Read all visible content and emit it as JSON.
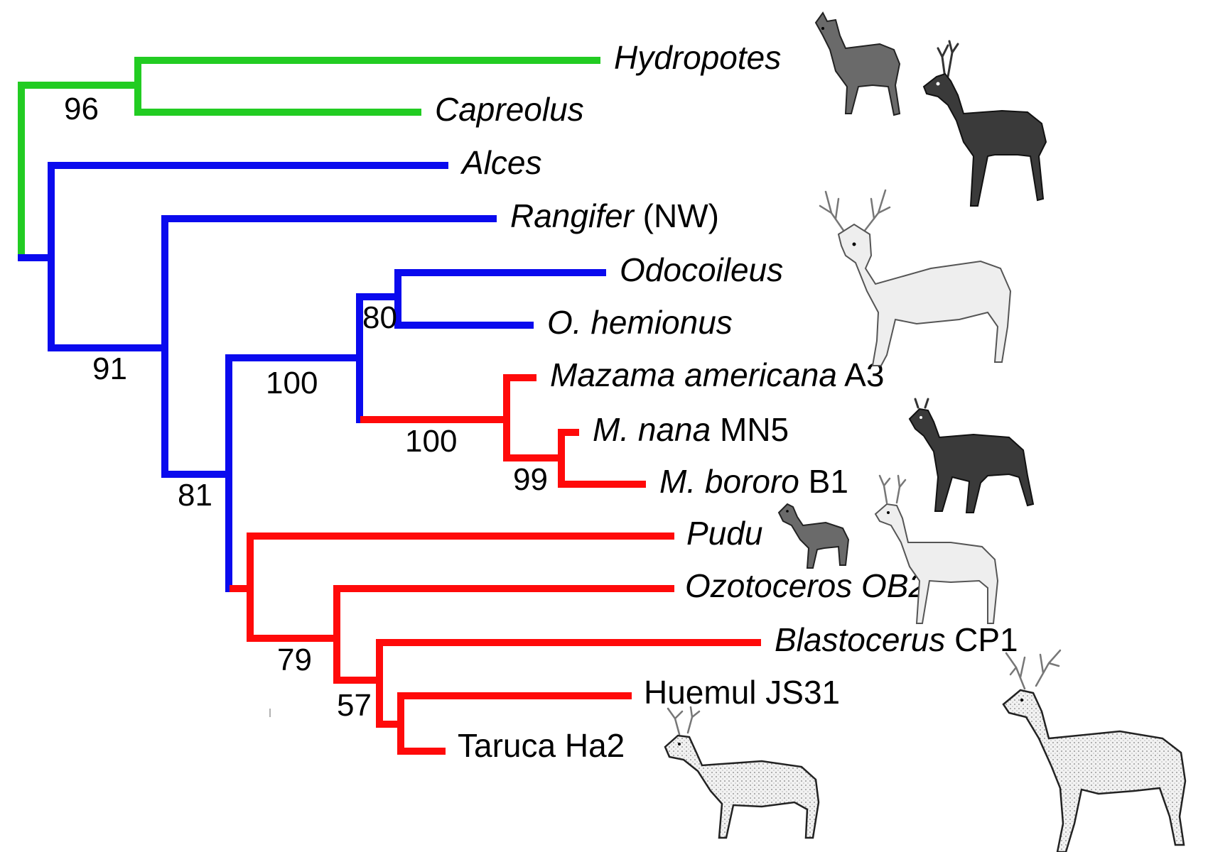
{
  "tree": {
    "taxa": [
      {
        "id": "hydropotes",
        "name": "Hydropotes",
        "suffix": ""
      },
      {
        "id": "capreolus",
        "name": "Capreolus",
        "suffix": ""
      },
      {
        "id": "alces",
        "name": "Alces",
        "suffix": ""
      },
      {
        "id": "rangifer",
        "name": "Rangifer",
        "suffix": " (NW)"
      },
      {
        "id": "odocoileus",
        "name": "Odocoileus",
        "suffix": ""
      },
      {
        "id": "o-hemionus",
        "name": "O. hemionus",
        "suffix": ""
      },
      {
        "id": "mazama-americana",
        "name": "Mazama americana",
        "suffix": " A3"
      },
      {
        "id": "m-nana",
        "name": "M. nana",
        "suffix": " MN5"
      },
      {
        "id": "m-bororo",
        "name": "M. bororo",
        "suffix": " B1"
      },
      {
        "id": "pudu",
        "name": "Pudu",
        "suffix": ""
      },
      {
        "id": "ozotoceros",
        "name": "Ozotoceros OB2",
        "suffix": ""
      },
      {
        "id": "blastocerus",
        "name": "Blastocerus",
        "suffix": " CP1"
      },
      {
        "id": "huemul",
        "name": "",
        "suffix": "Huemul JS31"
      },
      {
        "id": "taruca",
        "name": "",
        "suffix": "Taruca Ha2"
      }
    ],
    "support_values": [
      "96",
      "91",
      "80",
      "100",
      "100",
      "99",
      "81",
      "79",
      "57"
    ],
    "colors": {
      "old_world": "#22cc22",
      "north_american": "#0a0aee",
      "south_american": "#ff0a0a"
    },
    "illustrations": [
      "water-deer",
      "roe-deer",
      "white-tailed-deer",
      "brocket-deer",
      "pudu-deer",
      "pampas-deer",
      "marsh-deer",
      "taruca-deer"
    ]
  }
}
